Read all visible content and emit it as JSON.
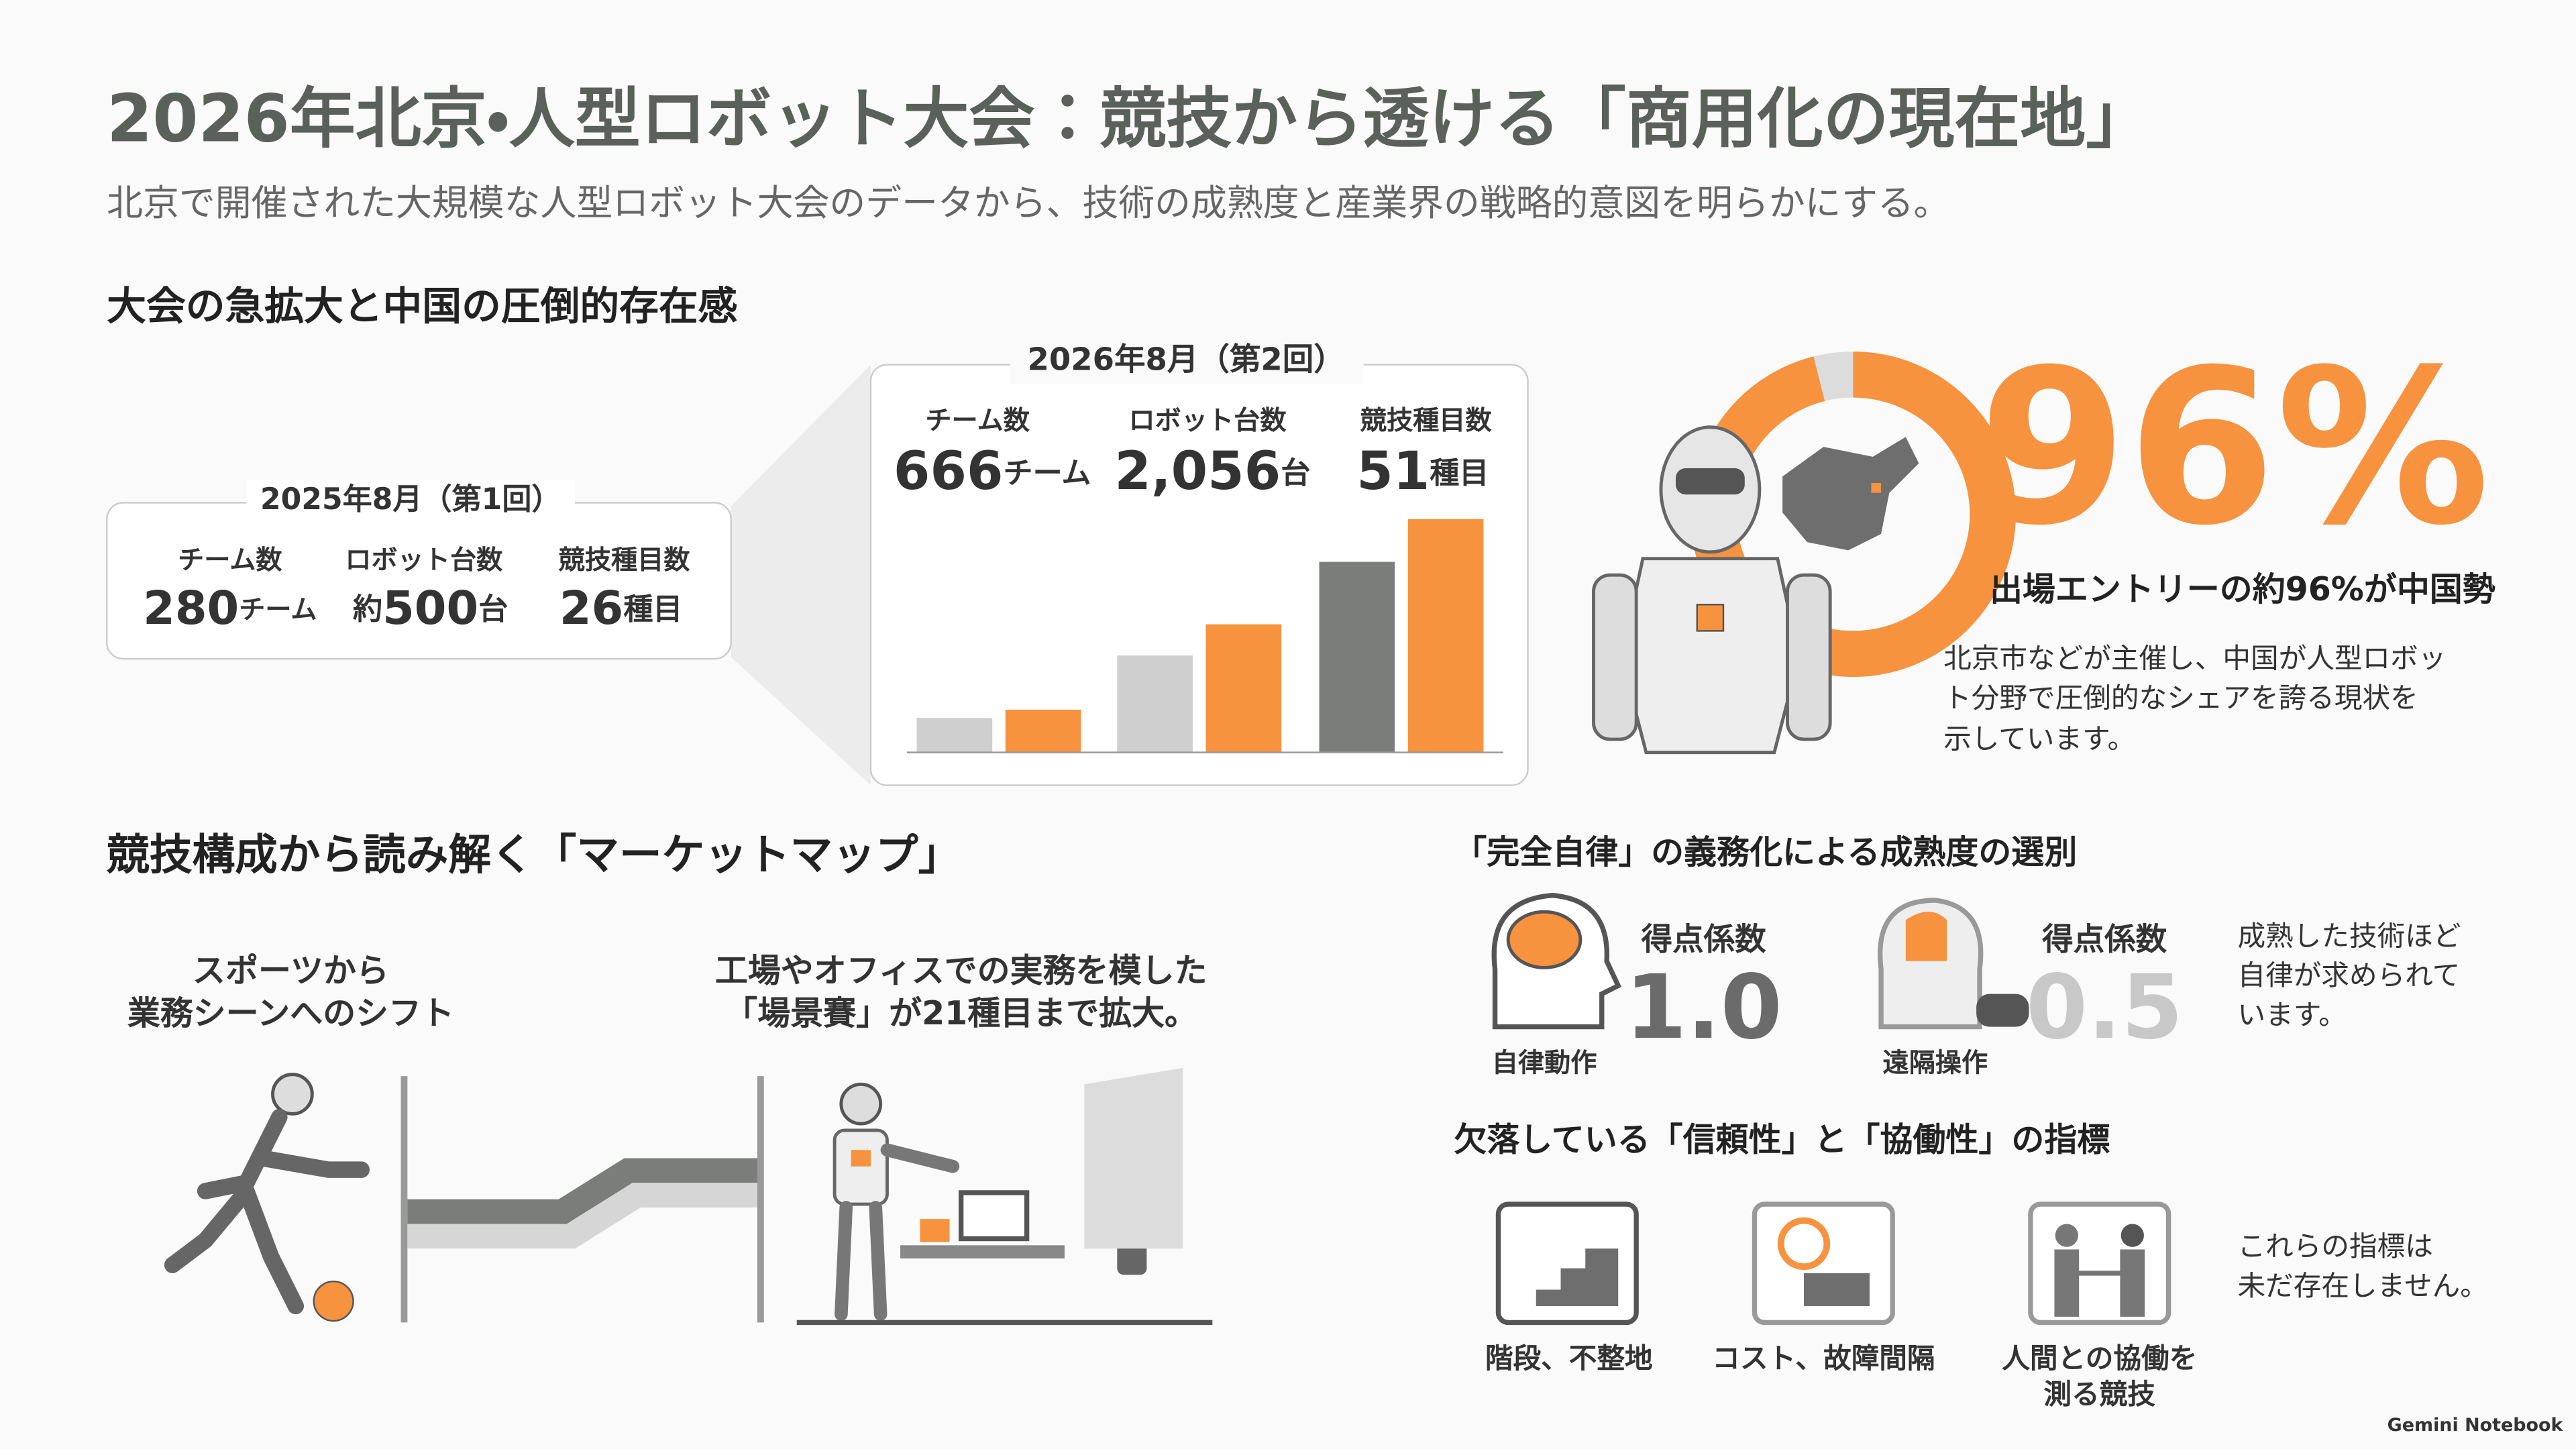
{
  "header": {
    "title": "2026年北京・人型ロボット大会：競技から透ける「商用化の現在地」",
    "subtitle": "北京で開催された大規模な人型ロボット大会のデータから、技術の成熟度と産業界の戦略的意図を明らかにする。"
  },
  "growth": {
    "heading": "大会の急拡大と中国の圧倒的存在感",
    "editions": [
      {
        "label": "2025年8月（第1回）",
        "stats": [
          {
            "label": "チーム数",
            "prefix": "",
            "value": "280",
            "unit": "チーム"
          },
          {
            "label": "ロボット台数",
            "prefix": "約",
            "value": "500",
            "unit": "台"
          },
          {
            "label": "競技種目数",
            "prefix": "",
            "value": "26",
            "unit": "種目"
          }
        ]
      },
      {
        "label": "2026年8月（第2回）",
        "stats": [
          {
            "label": "チーム数",
            "prefix": "",
            "value": "666",
            "unit": "チーム"
          },
          {
            "label": "ロボット台数",
            "prefix": "",
            "value": "2,056",
            "unit": "台"
          },
          {
            "label": "競技種目数",
            "prefix": "",
            "value": "51",
            "unit": "種目"
          }
        ]
      }
    ],
    "china": {
      "share": "96%",
      "caption": "出場エントリーの約96%が中国勢",
      "description": [
        "北京市などが主催し、中国が人型ロボッ",
        "ト分野で圧倒的なシェアを誇る現状を",
        "示しています。"
      ]
    }
  },
  "market": {
    "heading": "競技構成から読み解く「マーケットマップ」",
    "left": [
      "スポーツから",
      "業務シーンへのシフト"
    ],
    "right": [
      "工場やオフィスでの実務を模した",
      "「場景賽」が21種目まで拡大。"
    ]
  },
  "autonomy": {
    "heading": "「完全自律」の義務化による成熟度の選別",
    "modes": [
      {
        "label": "自律動作",
        "coef_label": "得点係数",
        "coef": "1.0"
      },
      {
        "label": "遠隔操作",
        "coef_label": "得点係数",
        "coef": "0.5"
      }
    ],
    "note": [
      "成熟した技術ほど",
      "自律が求められて",
      "います。"
    ]
  },
  "missing": {
    "heading": "欠落している「信頼性」と「協働性」の指標",
    "items": [
      [
        "階段、不整地"
      ],
      [
        "コスト、故障間隔"
      ],
      [
        "人間との協働を",
        "測る競技"
      ]
    ],
    "note": [
      "これらの指標は",
      "未だ存在しません。"
    ]
  },
  "footer": "Gemini Notebook"
}
